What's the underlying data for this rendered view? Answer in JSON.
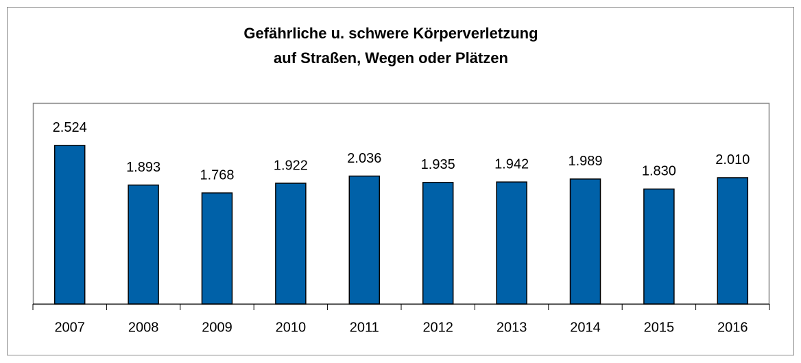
{
  "chart_data": {
    "type": "bar",
    "title": [
      "Gefährliche u. schwere Körperverletzung",
      "auf Straßen, Wegen oder Plätzen"
    ],
    "categories": [
      "2007",
      "2008",
      "2009",
      "2010",
      "2011",
      "2012",
      "2013",
      "2014",
      "2015",
      "2016"
    ],
    "values": [
      2524,
      1893,
      1768,
      1922,
      2036,
      1935,
      1942,
      1989,
      1830,
      2010
    ],
    "value_labels": [
      "2.524",
      "1.893",
      "1.768",
      "1.922",
      "2.036",
      "1.935",
      "1.942",
      "1.989",
      "1.830",
      "2.010"
    ],
    "color": "#0061a8",
    "ylim": [
      0,
      3200
    ]
  }
}
